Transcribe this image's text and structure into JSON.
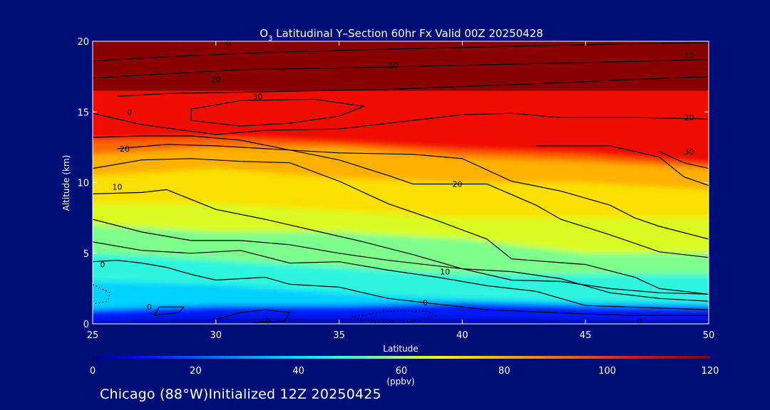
{
  "title": {
    "species": "O",
    "subscript": "3",
    "rest": " Latitudinal Y–Section 60hr  Fx Valid 00Z 20250428"
  },
  "footer": "Chicago (88°W)Initialized 12Z 20250425",
  "colors": {
    "background": "#000e78",
    "text": "#ffffff",
    "contour": "#000000"
  },
  "chart_data": {
    "type": "heatmap",
    "xlabel": "Latitude",
    "ylabel": "Altitude (km)",
    "xlim": [
      25,
      50
    ],
    "ylim": [
      0,
      20
    ],
    "x_ticks": [
      25,
      30,
      35,
      40,
      45,
      50
    ],
    "y_ticks": [
      0,
      5,
      10,
      15,
      20
    ],
    "colorbar": {
      "label": "(ppbv)",
      "min": 0,
      "max": 120,
      "ticks": [
        0,
        20,
        40,
        60,
        80,
        100,
        120
      ],
      "stops": [
        {
          "v": 0,
          "c": "#000083"
        },
        {
          "v": 10,
          "c": "#0010ff"
        },
        {
          "v": 25,
          "c": "#0078ff"
        },
        {
          "v": 40,
          "c": "#00e0ff"
        },
        {
          "v": 50,
          "c": "#40ffd0"
        },
        {
          "v": 60,
          "c": "#a8ff60"
        },
        {
          "v": 68,
          "c": "#f8f800"
        },
        {
          "v": 80,
          "c": "#ffb000"
        },
        {
          "v": 92,
          "c": "#ff6800"
        },
        {
          "v": 105,
          "c": "#f01000"
        },
        {
          "v": 120,
          "c": "#880000"
        }
      ]
    },
    "ozone_bands": [
      {
        "name": "near-surface",
        "points": [
          [
            25,
            0.3
          ],
          [
            30,
            0.5
          ],
          [
            35,
            0.5
          ],
          [
            40,
            0.5
          ],
          [
            45,
            0.4
          ],
          [
            50,
            0.4
          ]
        ],
        "value": 12
      },
      {
        "name": "boundary",
        "points": [
          [
            25,
            1.0
          ],
          [
            30,
            1.3
          ],
          [
            35,
            1.3
          ],
          [
            40,
            1.5
          ],
          [
            45,
            1.3
          ],
          [
            50,
            1.2
          ]
        ],
        "value": 38
      },
      {
        "name": "lower",
        "points": [
          [
            25,
            3.0
          ],
          [
            30,
            2.8
          ],
          [
            35,
            2.2
          ],
          [
            40,
            1.8
          ],
          [
            45,
            1.6
          ],
          [
            50,
            1.5
          ]
        ],
        "value": 47
      },
      {
        "name": "low-mid",
        "points": [
          [
            25,
            5.0
          ],
          [
            30,
            4.5
          ],
          [
            35,
            4.0
          ],
          [
            40,
            3.5
          ],
          [
            45,
            3.5
          ],
          [
            50,
            3.5
          ]
        ],
        "value": 56
      },
      {
        "name": "mid",
        "points": [
          [
            25,
            7.0
          ],
          [
            30,
            6.5
          ],
          [
            35,
            6.5
          ],
          [
            40,
            6.0
          ],
          [
            45,
            5.0
          ],
          [
            50,
            5.0
          ]
        ],
        "value": 65
      },
      {
        "name": "upper-mid",
        "points": [
          [
            25,
            8.5
          ],
          [
            30,
            8.5
          ],
          [
            35,
            8.0
          ],
          [
            40,
            7.5
          ],
          [
            45,
            7.5
          ],
          [
            50,
            7.5
          ]
        ],
        "value": 72
      },
      {
        "name": "upper",
        "points": [
          [
            25,
            10.5
          ],
          [
            30,
            11.0
          ],
          [
            35,
            10.3
          ],
          [
            40,
            10.0
          ],
          [
            45,
            10.0
          ],
          [
            50,
            9.5
          ]
        ],
        "value": 80
      },
      {
        "name": "tropopause-low",
        "points": [
          [
            25,
            12.0
          ],
          [
            30,
            12.5
          ],
          [
            35,
            12.5
          ],
          [
            40,
            11.8
          ],
          [
            45,
            11.5
          ],
          [
            50,
            11.0
          ]
        ],
        "value": 92
      },
      {
        "name": "tropopause",
        "points": [
          [
            25,
            13.0
          ],
          [
            30,
            13.2
          ],
          [
            35,
            12.8
          ],
          [
            40,
            12.3
          ],
          [
            45,
            12.0
          ],
          [
            50,
            11.3
          ]
        ],
        "value": 105
      },
      {
        "name": "stratosphere",
        "points": [
          [
            25,
            20
          ],
          [
            50,
            20
          ]
        ],
        "value": 125
      }
    ],
    "contours": [
      {
        "label": "0",
        "points": [
          [
            25,
            4.4
          ],
          [
            26,
            4.5
          ],
          [
            27,
            4.3
          ],
          [
            28,
            4.0
          ],
          [
            29,
            3.5
          ],
          [
            30,
            3.1
          ],
          [
            32,
            3.3
          ],
          [
            33,
            2.8
          ],
          [
            35,
            2.6
          ],
          [
            37,
            1.8
          ],
          [
            39,
            1.4
          ],
          [
            41,
            1.0
          ],
          [
            45,
            0.7
          ],
          [
            47,
            0.6
          ],
          [
            50,
            0.6
          ]
        ]
      },
      {
        "label": "",
        "points": [
          [
            25,
            5.8
          ],
          [
            27,
            5.2
          ],
          [
            29,
            5.0
          ],
          [
            31,
            5.2
          ],
          [
            33,
            4.3
          ],
          [
            35,
            4.4
          ],
          [
            37,
            3.8
          ],
          [
            39,
            3.3
          ],
          [
            41,
            2.7
          ],
          [
            43,
            2.3
          ],
          [
            44,
            1.8
          ],
          [
            45,
            1.3
          ],
          [
            50,
            1.0
          ]
        ]
      },
      {
        "label": "",
        "points": [
          [
            25,
            7.4
          ],
          [
            27,
            6.5
          ],
          [
            29,
            5.9
          ],
          [
            31,
            5.9
          ],
          [
            33,
            5.6
          ],
          [
            35,
            5.0
          ],
          [
            37,
            4.5
          ],
          [
            40,
            3.9
          ],
          [
            42,
            3.7
          ],
          [
            44,
            3.2
          ],
          [
            45,
            2.7
          ],
          [
            46,
            2.2
          ],
          [
            48,
            1.8
          ],
          [
            50,
            1.6
          ]
        ]
      },
      {
        "label": "10",
        "points": [
          [
            25,
            9.2
          ],
          [
            27,
            9.3
          ],
          [
            28,
            9.5
          ],
          [
            30,
            8.1
          ],
          [
            32,
            7.4
          ],
          [
            34,
            6.6
          ],
          [
            36,
            5.8
          ],
          [
            38,
            4.9
          ],
          [
            40,
            3.9
          ],
          [
            42,
            3.1
          ],
          [
            44,
            3.0
          ],
          [
            46,
            2.5
          ],
          [
            48,
            2.2
          ],
          [
            50,
            2.1
          ]
        ]
      },
      {
        "label": "",
        "points": [
          [
            25,
            11.0
          ],
          [
            27,
            11.6
          ],
          [
            29,
            11.7
          ],
          [
            31,
            11.5
          ],
          [
            33,
            11.4
          ],
          [
            35,
            10.1
          ],
          [
            37,
            8.5
          ],
          [
            39,
            7.3
          ],
          [
            41,
            6.0
          ],
          [
            42,
            4.6
          ],
          [
            45,
            4.2
          ],
          [
            47,
            3.3
          ],
          [
            48,
            2.5
          ],
          [
            50,
            2.1
          ]
        ]
      },
      {
        "label": "20",
        "points": [
          [
            26,
            12.4
          ],
          [
            28,
            12.7
          ],
          [
            30,
            12.6
          ],
          [
            33,
            12.3
          ],
          [
            35,
            11.6
          ],
          [
            37,
            10.5
          ],
          [
            38,
            9.9
          ],
          [
            41,
            9.9
          ],
          [
            43,
            8.4
          ],
          [
            44,
            7.4
          ],
          [
            46,
            6.3
          ],
          [
            48,
            5.1
          ],
          [
            50,
            4.7
          ]
        ]
      },
      {
        "label": "",
        "points": [
          [
            25,
            13.2
          ],
          [
            27,
            13.3
          ],
          [
            29,
            13.3
          ],
          [
            31,
            13.0
          ],
          [
            33,
            12.3
          ],
          [
            35,
            12.1
          ],
          [
            38,
            12.0
          ],
          [
            40,
            11.7
          ],
          [
            42,
            10.1
          ],
          [
            44,
            9.4
          ],
          [
            46,
            8.4
          ],
          [
            47,
            7.5
          ],
          [
            48,
            6.9
          ],
          [
            50,
            6.0
          ]
        ]
      },
      {
        "label": "",
        "points": [
          [
            43,
            12.6
          ],
          [
            46,
            12.6
          ],
          [
            47,
            12.2
          ],
          [
            48,
            11.8
          ],
          [
            49,
            10.4
          ],
          [
            50,
            9.8
          ]
        ]
      },
      {
        "label": "30",
        "points": [
          [
            48,
            12.2
          ],
          [
            49,
            11.4
          ],
          [
            50,
            11.0
          ]
        ]
      },
      {
        "label": "",
        "points": [
          [
            25,
            14.9
          ],
          [
            27,
            14.1
          ],
          [
            30,
            13.4
          ],
          [
            32,
            13.7
          ],
          [
            35,
            13.8
          ],
          [
            37,
            14.2
          ],
          [
            40,
            14.8
          ],
          [
            42,
            14.9
          ],
          [
            44,
            14.6
          ],
          [
            47,
            14.6
          ],
          [
            50,
            14.5
          ]
        ]
      },
      {
        "label": "",
        "points": [
          [
            29,
            14.4
          ],
          [
            31,
            14.0
          ],
          [
            33,
            14.2
          ],
          [
            35,
            14.7
          ],
          [
            36,
            15.4
          ],
          [
            34,
            15.9
          ],
          [
            31,
            15.8
          ],
          [
            29,
            15.2
          ],
          [
            29,
            14.4
          ]
        ]
      },
      {
        "label": "",
        "points": [
          [
            26,
            16.1
          ],
          [
            28,
            16.3
          ],
          [
            31,
            16.4
          ],
          [
            34,
            16.5
          ],
          [
            37,
            16.6
          ],
          [
            40,
            16.8
          ],
          [
            43,
            17.0
          ],
          [
            47,
            17.3
          ],
          [
            50,
            17.5
          ]
        ]
      },
      {
        "label": "",
        "points": [
          [
            25,
            17.4
          ],
          [
            28,
            17.7
          ],
          [
            31,
            18.0
          ],
          [
            35,
            18.1
          ],
          [
            40,
            18.3
          ],
          [
            45,
            18.5
          ],
          [
            50,
            18.7
          ]
        ]
      },
      {
        "label": "",
        "points": [
          [
            25,
            18.6
          ],
          [
            28,
            18.9
          ],
          [
            32,
            19.2
          ],
          [
            36,
            19.4
          ],
          [
            41,
            19.6
          ],
          [
            46,
            19.8
          ],
          [
            50,
            19.9
          ]
        ]
      },
      {
        "label": "",
        "points": [
          [
            27.5,
            0.6
          ],
          [
            28.5,
            0.8
          ],
          [
            28.7,
            1.2
          ],
          [
            27.7,
            1.2
          ],
          [
            27.5,
            0.6
          ]
        ]
      },
      {
        "label": "",
        "points": [
          [
            30,
            0.3
          ],
          [
            31,
            0.8
          ],
          [
            32,
            1.0
          ],
          [
            33,
            0.8
          ],
          [
            32.8,
            0.2
          ],
          [
            31.5,
            0.1
          ]
        ]
      }
    ],
    "dotted_contours": [
      {
        "points": [
          [
            35.5,
            0.5
          ],
          [
            37,
            0.9
          ],
          [
            38.5,
            0.9
          ],
          [
            39,
            0.6
          ],
          [
            38,
            0.2
          ],
          [
            36.5,
            0.1
          ],
          [
            35.5,
            0.5
          ]
        ]
      },
      {
        "points": [
          [
            25,
            2.8
          ],
          [
            25.7,
            2.2
          ],
          [
            25.6,
            1.6
          ],
          [
            25,
            1.4
          ]
        ]
      }
    ],
    "contour_labels": [
      {
        "text": "0",
        "x": 26.5,
        "y": 15.0
      },
      {
        "text": "0",
        "x": 25.4,
        "y": 4.2
      },
      {
        "text": "0",
        "x": 27.3,
        "y": 1.2
      },
      {
        "text": "0",
        "x": 32.1,
        "y": 0.2
      },
      {
        "text": "0",
        "x": 38.5,
        "y": 1.5
      },
      {
        "text": "0",
        "x": 47.2,
        "y": 0.2
      },
      {
        "text": "10",
        "x": 26.0,
        "y": 9.7
      },
      {
        "text": "10",
        "x": 39.3,
        "y": 3.7
      },
      {
        "text": "10",
        "x": 37.2,
        "y": 18.3
      },
      {
        "text": "10",
        "x": 49.2,
        "y": 19.0
      },
      {
        "text": "20",
        "x": 26.3,
        "y": 12.4
      },
      {
        "text": "20",
        "x": 39.8,
        "y": 9.9
      },
      {
        "text": "20",
        "x": 30.0,
        "y": 17.3
      },
      {
        "text": "20",
        "x": 49.2,
        "y": 14.6
      },
      {
        "text": "30",
        "x": 31.7,
        "y": 16.1
      },
      {
        "text": "30",
        "x": 49.2,
        "y": 12.2
      },
      {
        "text": "0",
        "x": 30.5,
        "y": 19.9
      }
    ]
  }
}
